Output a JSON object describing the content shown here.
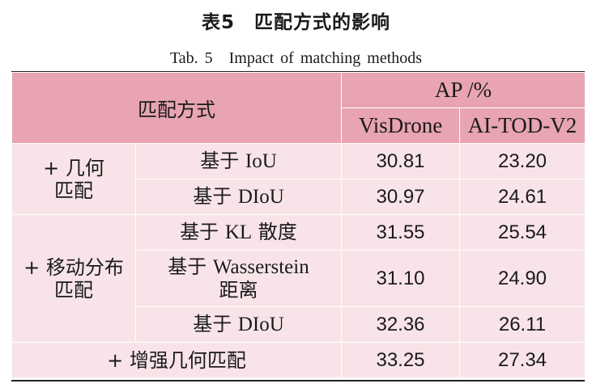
{
  "title": {
    "zh": "表5　匹配方式的影响",
    "en": "Tab. 5　Impact of matching methods"
  },
  "table": {
    "header": {
      "method": "匹配方式",
      "ap": "AP /%",
      "dataset1": "VisDrone",
      "dataset2": "AI-TOD-V2"
    },
    "groups": {
      "geometric": {
        "label_line1": "+ 几何",
        "label_line2": "匹配",
        "rows": [
          {
            "method_zh": "基于 ",
            "method_en": "IoU",
            "visdrone": "30.81",
            "aitod": "23.20"
          },
          {
            "method_zh": "基于 ",
            "method_en": "DIoU",
            "visdrone": "30.97",
            "aitod": "24.61"
          }
        ]
      },
      "moving": {
        "label_line1": "+ 移动分布",
        "label_line2": "匹配",
        "rows": [
          {
            "method_zh": "基于 ",
            "method_en": "KL",
            "method_zh2": " 散度",
            "visdrone": "31.55",
            "aitod": "25.54"
          },
          {
            "method_zh": "基于 ",
            "method_en": "Wasserstein",
            "method_zh2": "距离",
            "visdrone": "31.10",
            "aitod": "24.90"
          },
          {
            "method_zh": "基于 ",
            "method_en": "DIoU",
            "visdrone": "32.36",
            "aitod": "26.11"
          }
        ]
      },
      "enhanced": {
        "label": "+ 增强几何匹配",
        "visdrone": "33.25",
        "aitod": "27.34"
      }
    }
  }
}
